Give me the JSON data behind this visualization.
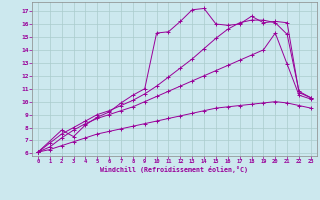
{
  "background_color": "#cce8ee",
  "grid_color": "#aacccc",
  "line_color": "#990099",
  "xlabel": "Windchill (Refroidissement éolien,°C)",
  "xlim": [
    -0.5,
    23.5
  ],
  "ylim": [
    5.8,
    17.7
  ],
  "xticks": [
    0,
    1,
    2,
    3,
    4,
    5,
    6,
    7,
    8,
    9,
    10,
    11,
    12,
    13,
    14,
    15,
    16,
    17,
    18,
    19,
    20,
    21,
    22,
    23
  ],
  "yticks": [
    6,
    7,
    8,
    9,
    10,
    11,
    12,
    13,
    14,
    15,
    16,
    17
  ],
  "line1_x": [
    0,
    1,
    2,
    3,
    4,
    5,
    6,
    7,
    8,
    9,
    10,
    11,
    12,
    13,
    14,
    15,
    16,
    17,
    18,
    19,
    20,
    21,
    22,
    23
  ],
  "line1_y": [
    6.1,
    6.5,
    7.2,
    7.8,
    8.3,
    8.7,
    9.0,
    9.3,
    9.6,
    10.0,
    10.4,
    10.8,
    11.2,
    11.6,
    12.0,
    12.4,
    12.8,
    13.2,
    13.6,
    14.0,
    15.3,
    12.9,
    10.5,
    10.2
  ],
  "line2_x": [
    0,
    2,
    3,
    4,
    5,
    6,
    7,
    8,
    9,
    10,
    11,
    12,
    13,
    14,
    15,
    16,
    17,
    18,
    19,
    20,
    21,
    22,
    23
  ],
  "line2_y": [
    6.1,
    7.8,
    7.3,
    8.2,
    8.8,
    9.2,
    9.9,
    10.5,
    11.0,
    15.3,
    15.4,
    16.2,
    17.1,
    17.2,
    16.0,
    15.9,
    16.0,
    16.6,
    16.1,
    16.2,
    16.1,
    10.7,
    10.3
  ],
  "line3_x": [
    0,
    1,
    2,
    3,
    4,
    5,
    6,
    7,
    8,
    9,
    10,
    11,
    12,
    13,
    14,
    15,
    16,
    17,
    18,
    19,
    20,
    21,
    22,
    23
  ],
  "line3_y": [
    6.1,
    6.8,
    7.5,
    8.0,
    8.5,
    9.0,
    9.3,
    9.7,
    10.1,
    10.6,
    11.2,
    11.9,
    12.6,
    13.3,
    14.1,
    14.9,
    15.6,
    16.1,
    16.3,
    16.3,
    16.1,
    15.2,
    10.8,
    10.3
  ],
  "line4_x": [
    0,
    1,
    2,
    3,
    4,
    5,
    6,
    7,
    8,
    9,
    10,
    11,
    12,
    13,
    14,
    15,
    16,
    17,
    18,
    19,
    20,
    21,
    22,
    23
  ],
  "line4_y": [
    6.1,
    6.3,
    6.6,
    6.9,
    7.2,
    7.5,
    7.7,
    7.9,
    8.1,
    8.3,
    8.5,
    8.7,
    8.9,
    9.1,
    9.3,
    9.5,
    9.6,
    9.7,
    9.8,
    9.9,
    10.0,
    9.9,
    9.7,
    9.5
  ]
}
